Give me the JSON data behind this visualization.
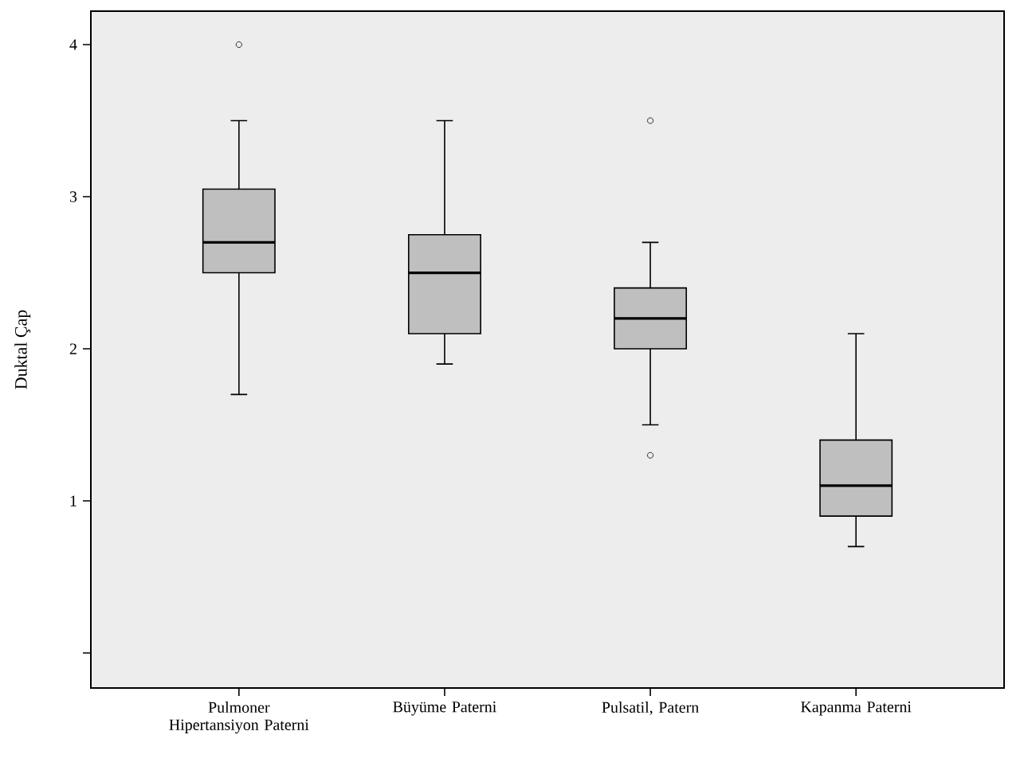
{
  "chart_data": {
    "type": "box",
    "ylabel": "Duktal Çap",
    "categories": [
      "Pulmoner Hipertansiyon Paterni",
      "Büyüme Paterni",
      "Pulsatil, Patern",
      "Kapanma Paterni"
    ],
    "boxes": [
      {
        "low": 1.7,
        "q1": 2.5,
        "median": 2.7,
        "q3": 3.05,
        "high": 3.5,
        "outliers": [
          4.0
        ]
      },
      {
        "low": 1.9,
        "q1": 2.1,
        "median": 2.5,
        "q3": 2.75,
        "high": 3.5
      },
      {
        "low": 1.5,
        "q1": 2.0,
        "median": 2.2,
        "q3": 2.4,
        "high": 2.7,
        "outliers": [
          3.5,
          1.3
        ]
      },
      {
        "low": 0.7,
        "q1": 0.9,
        "median": 1.1,
        "q3": 1.4,
        "high": 2.1
      }
    ],
    "color": "#bfbfbf",
    "ylim": [
      -0.23,
      4.22
    ],
    "yticks": [
      {
        "value": 0,
        "label": null
      },
      1,
      2,
      3,
      4
    ],
    "grid": false,
    "marker": "circle"
  }
}
